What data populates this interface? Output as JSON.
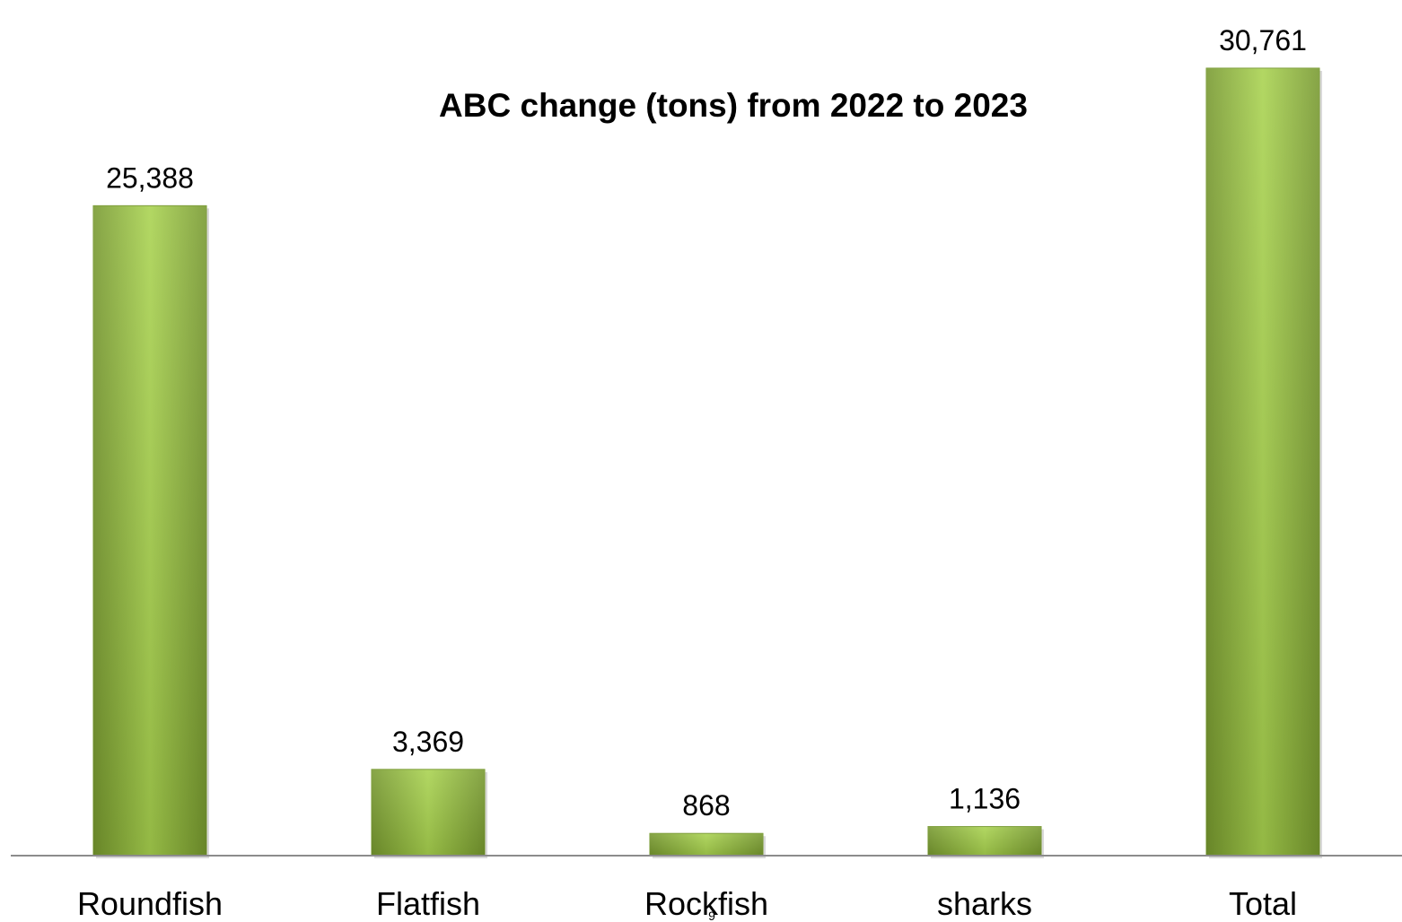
{
  "chart_data": {
    "type": "bar",
    "title": "ABC change (tons) from 2022 to 2023",
    "categories": [
      "Roundfish",
      "Flatfish",
      "Rockfish",
      "sharks",
      "Total"
    ],
    "values": [
      25388,
      3369,
      868,
      1136,
      30761
    ],
    "value_labels": [
      "25,388",
      "3,369",
      "868",
      "1,136",
      "30,761"
    ],
    "ylim": [
      0,
      30761
    ],
    "grid": false,
    "legend": "none",
    "xlabel": "",
    "ylabel": ""
  },
  "colors": {
    "bar_light": "#a8d24e",
    "bar_mid": "#93be3f",
    "bar_dark": "#76982e",
    "axis": "#8c8c8c"
  },
  "slide_number": "9"
}
